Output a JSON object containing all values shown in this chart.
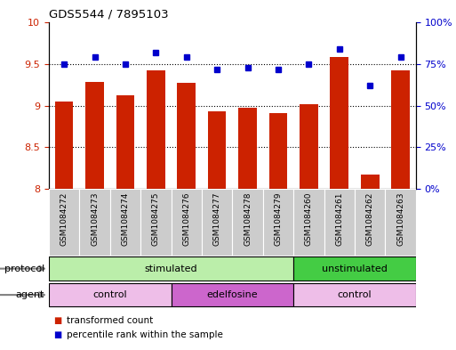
{
  "title": "GDS5544 / 7895103",
  "samples": [
    "GSM1084272",
    "GSM1084273",
    "GSM1084274",
    "GSM1084275",
    "GSM1084276",
    "GSM1084277",
    "GSM1084278",
    "GSM1084279",
    "GSM1084260",
    "GSM1084261",
    "GSM1084262",
    "GSM1084263"
  ],
  "red_values": [
    9.05,
    9.28,
    9.12,
    9.42,
    9.27,
    8.93,
    8.97,
    8.91,
    9.02,
    9.58,
    8.17,
    9.42
  ],
  "blue_values": [
    75,
    79,
    75,
    82,
    79,
    72,
    73,
    72,
    75,
    84,
    62,
    79
  ],
  "ylim_left": [
    8.0,
    10.0
  ],
  "ylim_right": [
    0,
    100
  ],
  "yticks_left": [
    8.0,
    8.5,
    9.0,
    9.5,
    10.0
  ],
  "yticks_right": [
    0,
    25,
    50,
    75,
    100
  ],
  "ytick_labels_left": [
    "8",
    "8.5",
    "9",
    "9.5",
    "10"
  ],
  "ytick_labels_right": [
    "0%",
    "25%",
    "50%",
    "75%",
    "100%"
  ],
  "grid_lines": [
    8.5,
    9.0,
    9.5
  ],
  "bar_color": "#cc2200",
  "dot_color": "#0000cc",
  "bar_bottom": 8.0,
  "protocol_groups": [
    {
      "label": "stimulated",
      "start": 0,
      "end": 8,
      "color": "#bbeeaa"
    },
    {
      "label": "unstimulated",
      "start": 8,
      "end": 12,
      "color": "#44cc44"
    }
  ],
  "agent_groups": [
    {
      "label": "control",
      "start": 0,
      "end": 4,
      "color": "#eebee8"
    },
    {
      "label": "edelfosine",
      "start": 4,
      "end": 8,
      "color": "#cc66cc"
    },
    {
      "label": "control",
      "start": 8,
      "end": 12,
      "color": "#eebee8"
    }
  ],
  "legend_red_label": "transformed count",
  "legend_blue_label": "percentile rank within the sample",
  "protocol_label": "protocol",
  "agent_label": "agent",
  "sample_box_color": "#cccccc",
  "fig_width": 5.13,
  "fig_height": 3.93,
  "dpi": 100
}
